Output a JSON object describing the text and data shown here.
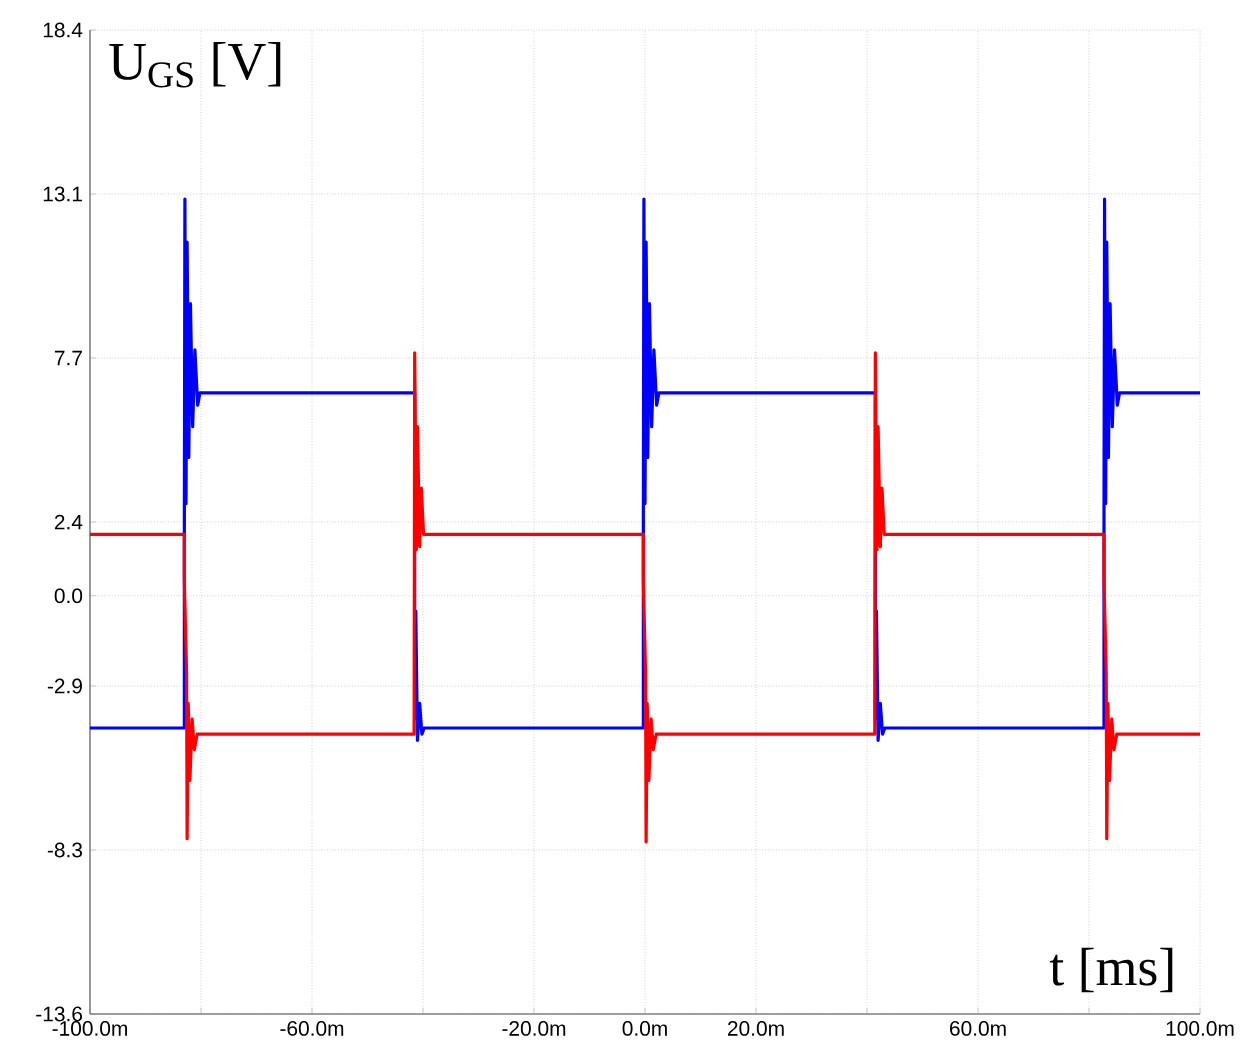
{
  "chart_data": {
    "type": "line",
    "xlabel": "t [ms]",
    "ylabel": "U$_{GS}$ [V]",
    "grid": true,
    "line_style": "solid",
    "marker": "none",
    "xlim": [
      -100,
      100
    ],
    "ylim": [
      -13.6,
      18.4
    ],
    "xticks": [
      {
        "value": -100,
        "label": "-100.0m"
      },
      {
        "value": -80,
        "label": null
      },
      {
        "value": -60,
        "label": "-60.0m"
      },
      {
        "value": -40,
        "label": null
      },
      {
        "value": -20,
        "label": "-20.0m"
      },
      {
        "value": 0,
        "label": "0.0m"
      },
      {
        "value": 20,
        "label": "20.0m"
      },
      {
        "value": 40,
        "label": null
      },
      {
        "value": 60,
        "label": "60.0m"
      },
      {
        "value": 80,
        "label": null
      },
      {
        "value": 100,
        "label": "100.0m"
      }
    ],
    "yticks": [
      {
        "value": -13.6,
        "label": "-13.6"
      },
      {
        "value": -8.2667,
        "label": "-8.3"
      },
      {
        "value": -2.9333,
        "label": "-2.9"
      },
      {
        "value": 0,
        "label": "0.0"
      },
      {
        "value": 2.4,
        "label": "2.4"
      },
      {
        "value": 7.7333,
        "label": "7.7"
      },
      {
        "value": 13.0667,
        "label": "13.1"
      },
      {
        "value": 18.4,
        "label": "18.4"
      }
    ],
    "series": [
      {
        "color": "#0000ff",
        "x": [
          -100,
          -83,
          -83,
          -82.9,
          -82.7,
          -82.5,
          -82.2,
          -81.9,
          -81.5,
          -81.1,
          -80.6,
          -80.2,
          -41.5,
          -41.5,
          -41.3,
          -41.0,
          -40.6,
          -40.2,
          -39.8,
          -0.3,
          -0.3,
          -0.2,
          0.0,
          0.2,
          0.5,
          0.8,
          1.2,
          1.6,
          2.1,
          2.5,
          41.5,
          41.5,
          41.7,
          42.0,
          42.4,
          42.8,
          43.2,
          82.7,
          82.7,
          82.8,
          83.0,
          83.2,
          83.5,
          83.8,
          84.2,
          84.6,
          85.1,
          85.5,
          100
        ],
        "values": [
          -4.3,
          -4.3,
          2.7,
          12.9,
          3.0,
          11.5,
          4.5,
          9.5,
          5.5,
          8.0,
          6.2,
          6.6,
          6.6,
          -4.0,
          -0.5,
          -4.7,
          -3.5,
          -4.5,
          -4.3,
          -4.3,
          2.7,
          12.9,
          3.0,
          11.5,
          4.5,
          9.5,
          5.5,
          8.0,
          6.2,
          6.6,
          6.6,
          -4.0,
          -0.5,
          -4.7,
          -3.5,
          -4.5,
          -4.3,
          -4.3,
          2.7,
          12.9,
          3.0,
          11.5,
          4.5,
          9.5,
          5.5,
          8.0,
          6.2,
          6.6,
          6.6
        ]
      },
      {
        "color": "#ff0000",
        "x": [
          -100,
          -83,
          -83,
          -82.6,
          -82.5,
          -82.3,
          -82.0,
          -81.6,
          -81.2,
          -80.7,
          -41.6,
          -41.5,
          -41.2,
          -41.0,
          -40.6,
          -40.3,
          -39.9,
          -0.3,
          -0.3,
          0.1,
          0.2,
          0.4,
          0.7,
          1.1,
          1.5,
          2.0,
          41.4,
          41.5,
          41.8,
          42.0,
          42.4,
          42.7,
          43.1,
          82.7,
          82.7,
          83.1,
          83.2,
          83.4,
          83.7,
          84.1,
          84.5,
          85.0,
          100
        ],
        "values": [
          2.0,
          2.0,
          0.5,
          -2.5,
          -7.9,
          -3.5,
          -6.0,
          -4.0,
          -5.0,
          -4.5,
          -4.5,
          7.9,
          1.5,
          5.5,
          1.6,
          3.5,
          2.0,
          2.0,
          0.5,
          -2.5,
          -8.0,
          -3.5,
          -6.0,
          -4.0,
          -5.0,
          -4.5,
          -4.5,
          7.9,
          1.5,
          5.5,
          1.6,
          3.5,
          2.0,
          2.0,
          0.5,
          -2.5,
          -7.9,
          -3.5,
          -6.0,
          -4.0,
          -5.0,
          -4.5,
          -4.5
        ]
      }
    ]
  }
}
